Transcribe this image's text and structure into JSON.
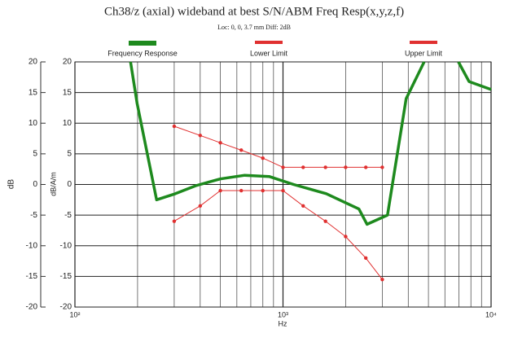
{
  "chart_data": {
    "type": "line",
    "title": "Ch38/z (axial) wideband at best S/N/ABM Freq Resp(x,y,z,f)",
    "subtitle": "Loc: 0, 0, 3.7 mm Diff: 2dB",
    "x_label": "Hz",
    "y_label": "dB",
    "y2_label": "dB/A/m",
    "xscale": "log",
    "xlim": [
      100,
      10000
    ],
    "xticks": [
      {
        "value": 100,
        "label": "10²"
      },
      {
        "value": 1000,
        "label": "10³"
      },
      {
        "value": 10000,
        "label": "10⁴"
      }
    ],
    "ylim": [
      -20,
      20
    ],
    "yticks": [
      -20,
      -15,
      -10,
      -5,
      0,
      5,
      10,
      15,
      20
    ],
    "y2lim": [
      -20,
      20
    ],
    "y2ticks": [
      -20,
      -15,
      -10,
      -5,
      0,
      5,
      10,
      15,
      20
    ],
    "grid": true,
    "legend": "top",
    "series": [
      {
        "name": "Frequency Response",
        "color": "#1e8a1e",
        "markers": false,
        "x": [
          185,
          199,
          247,
          304,
          381,
          499,
          654,
          858,
          1124,
          1614,
          2316,
          2534,
          3177,
          3908,
          4766,
          5800,
          6966,
          7834,
          10000
        ],
        "values": [
          20,
          13.2,
          -2.5,
          -1.5,
          -0.2,
          0.9,
          1.5,
          1.3,
          0,
          -1.5,
          -4,
          -6.5,
          -5,
          14,
          20,
          null,
          20,
          16.8,
          15.5
        ]
      },
      {
        "name": "Lower Limit",
        "color": "#e03030",
        "markers": true,
        "x": [
          300,
          400,
          500,
          630,
          800,
          1000,
          1250,
          1600,
          2000,
          2500,
          3000
        ],
        "values": [
          -6,
          -3.5,
          -1,
          -1,
          -1,
          -1,
          -3.5,
          -6,
          -8.5,
          -12,
          -15.5
        ]
      },
      {
        "name": "Upper Limit",
        "color": "#e03030",
        "markers": true,
        "x": [
          300,
          400,
          500,
          630,
          800,
          1000,
          1250,
          1600,
          2000,
          2500,
          3000
        ],
        "values": [
          9.5,
          8,
          6.8,
          5.6,
          4.3,
          2.8,
          2.8,
          2.8,
          2.8,
          2.8,
          2.8
        ]
      }
    ]
  }
}
